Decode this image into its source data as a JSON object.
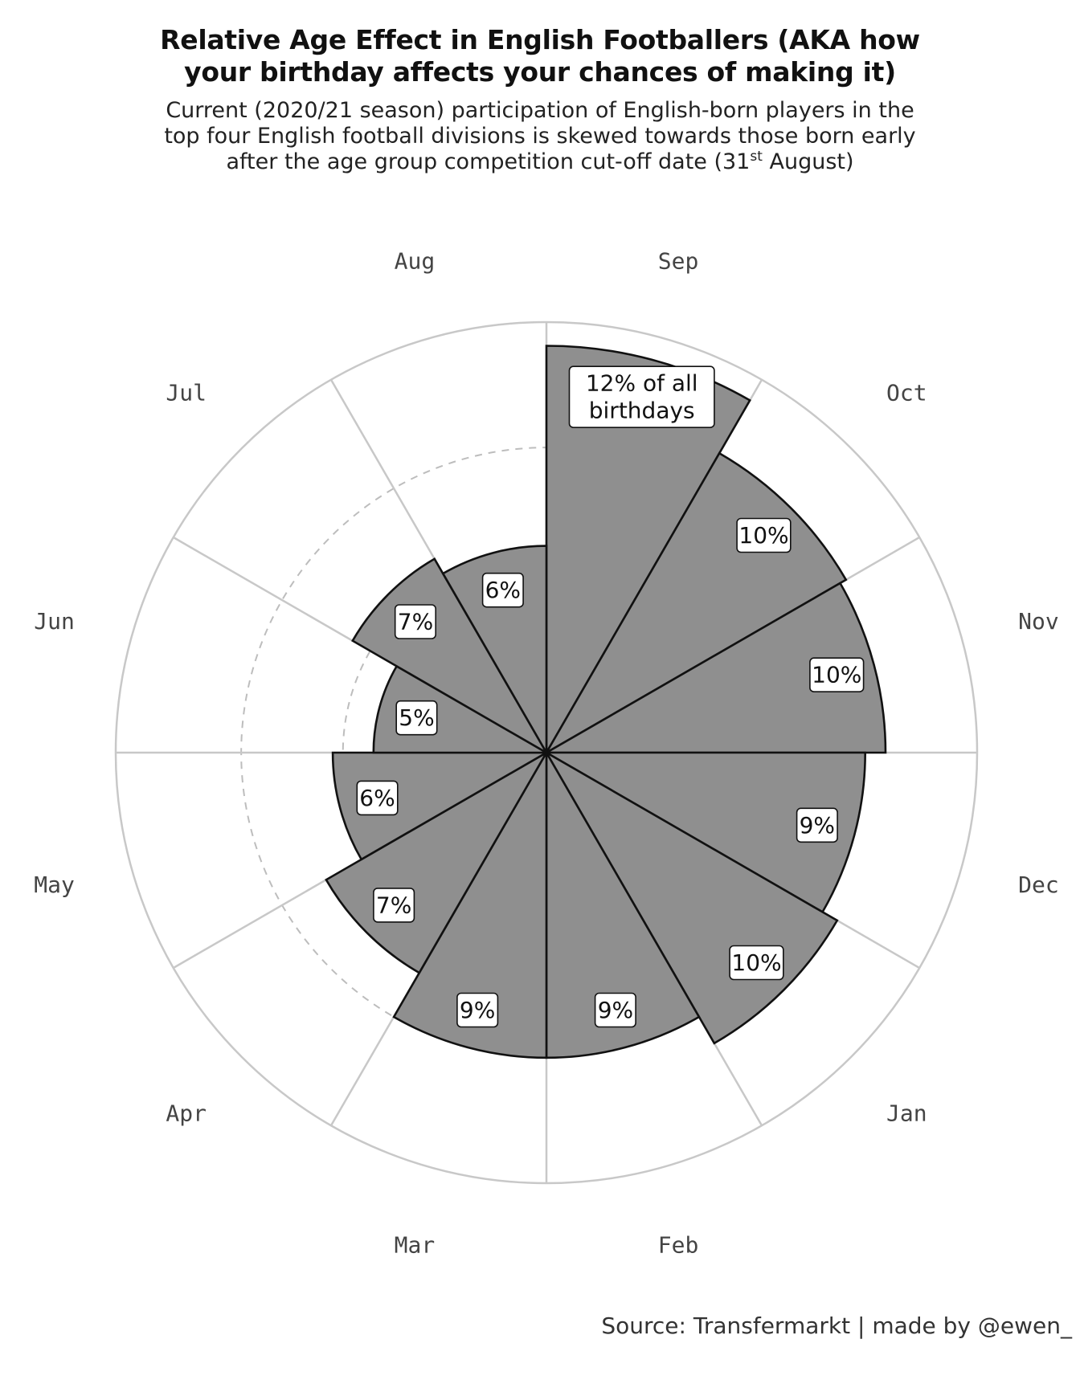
{
  "header": {
    "title_line1": "Relative Age Effect in English Footballers (AKA how",
    "title_line2": "your birthday affects your chances of making it)",
    "subtitle_line1": "Current (2020/21 season) participation of English-born players in the",
    "subtitle_line2": "top four English football divisions is skewed towards those born early",
    "subtitle_line3_pre": "after the age group competition cut-off date (31",
    "subtitle_line3_sup": "st",
    "subtitle_line3_post": " August)"
  },
  "source": "Source: Transfermarkt | made by @ewen_",
  "chart_data": {
    "type": "bar",
    "subtype": "polar",
    "categories": [
      "Sep",
      "Oct",
      "Nov",
      "Dec",
      "Jan",
      "Feb",
      "Mar",
      "Apr",
      "May",
      "Jun",
      "Jul",
      "Aug"
    ],
    "values": [
      12.0,
      10.2,
      10.0,
      9.4,
      9.9,
      9.0,
      9.0,
      7.5,
      6.3,
      5.1,
      6.6,
      6.1
    ],
    "value_labels": [
      "12% of all birthdays",
      "10%",
      "10%",
      "9%",
      "10%",
      "9%",
      "9%",
      "7%",
      "6%",
      "5%",
      "7%",
      "6%"
    ],
    "rlim": [
      0,
      12.7
    ],
    "grid_circles": [
      3,
      6,
      9
    ],
    "start": "top",
    "direction": "clockwise",
    "colors": {
      "bar_fill": "#8f8f8f",
      "bar_stroke": "#111111",
      "grid": "#c8c8c8",
      "dashed_grid": "#bdbdbd",
      "axis_label": "#444444"
    }
  }
}
